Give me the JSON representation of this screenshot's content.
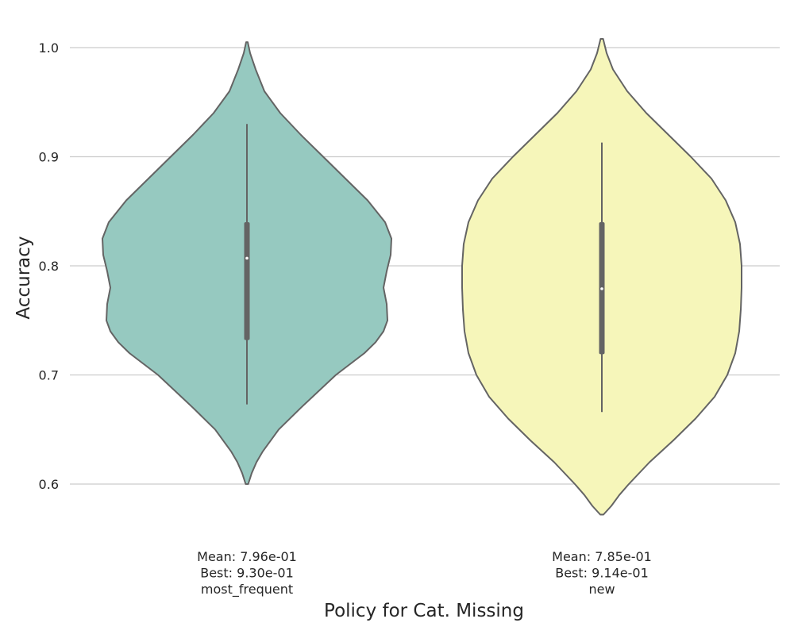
{
  "chart_data": {
    "type": "violin",
    "xlabel": "Policy for Cat. Missing",
    "ylabel": "Accuracy",
    "ylim": [
      0.55,
      1.02
    ],
    "yticks": [
      0.6,
      0.7,
      0.8,
      0.9,
      1.0
    ],
    "ytick_labels": [
      "0.6",
      "0.7",
      "0.8",
      "0.9",
      "1.0"
    ],
    "grid": "horizontal",
    "categories": [
      "most_frequent",
      "new"
    ],
    "series": [
      {
        "category": "most_frequent",
        "color": "#96c9c0",
        "mean_label": "Mean: 7.96e-01",
        "best_label": "Best: 9.30e-01",
        "whisker": [
          0.673,
          0.93
        ],
        "iqr": [
          0.732,
          0.84
        ],
        "median": 0.807,
        "density": [
          [
            0.6,
            0.008
          ],
          [
            0.61,
            0.03
          ],
          [
            0.62,
            0.06
          ],
          [
            0.63,
            0.1
          ],
          [
            0.65,
            0.2
          ],
          [
            0.67,
            0.34
          ],
          [
            0.7,
            0.56
          ],
          [
            0.72,
            0.74
          ],
          [
            0.73,
            0.81
          ],
          [
            0.74,
            0.86
          ],
          [
            0.75,
            0.885
          ],
          [
            0.765,
            0.88
          ],
          [
            0.78,
            0.86
          ],
          [
            0.795,
            0.88
          ],
          [
            0.81,
            0.905
          ],
          [
            0.825,
            0.91
          ],
          [
            0.84,
            0.87
          ],
          [
            0.86,
            0.76
          ],
          [
            0.88,
            0.62
          ],
          [
            0.9,
            0.48
          ],
          [
            0.92,
            0.34
          ],
          [
            0.94,
            0.21
          ],
          [
            0.96,
            0.11
          ],
          [
            0.98,
            0.055
          ],
          [
            0.995,
            0.02
          ],
          [
            1.005,
            0.005
          ]
        ]
      },
      {
        "category": "new",
        "color": "#f6f6ba",
        "mean_label": "Mean: 7.85e-01",
        "best_label": "Best: 9.14e-01",
        "whisker": [
          0.666,
          0.913
        ],
        "iqr": [
          0.719,
          0.84
        ],
        "median": 0.779,
        "density": [
          [
            0.572,
            0.01
          ],
          [
            0.58,
            0.06
          ],
          [
            0.59,
            0.11
          ],
          [
            0.6,
            0.17
          ],
          [
            0.62,
            0.3
          ],
          [
            0.64,
            0.45
          ],
          [
            0.66,
            0.59
          ],
          [
            0.68,
            0.71
          ],
          [
            0.7,
            0.79
          ],
          [
            0.72,
            0.84
          ],
          [
            0.74,
            0.865
          ],
          [
            0.76,
            0.875
          ],
          [
            0.78,
            0.88
          ],
          [
            0.8,
            0.88
          ],
          [
            0.82,
            0.87
          ],
          [
            0.84,
            0.84
          ],
          [
            0.86,
            0.78
          ],
          [
            0.88,
            0.69
          ],
          [
            0.9,
            0.56
          ],
          [
            0.92,
            0.42
          ],
          [
            0.94,
            0.28
          ],
          [
            0.96,
            0.16
          ],
          [
            0.98,
            0.07
          ],
          [
            0.995,
            0.03
          ],
          [
            1.008,
            0.008
          ]
        ]
      }
    ]
  }
}
